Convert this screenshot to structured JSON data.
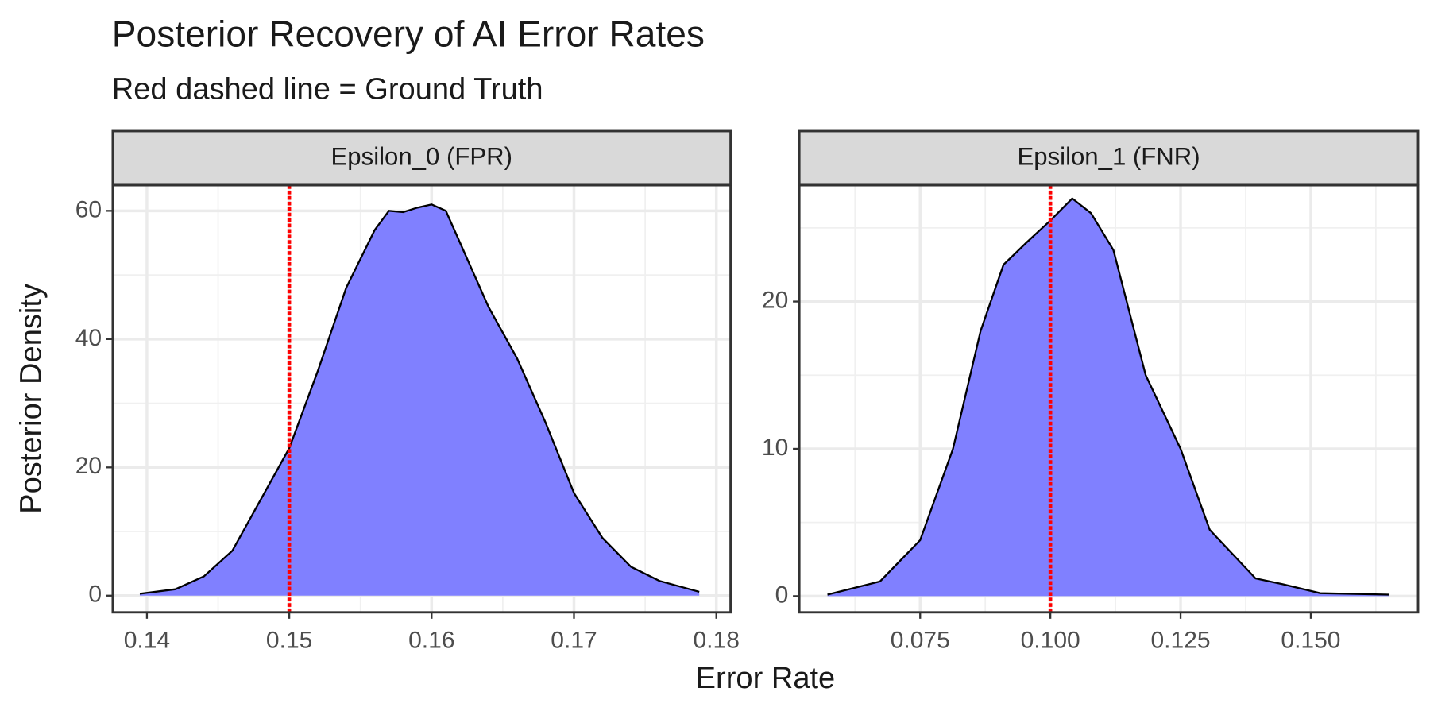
{
  "chart_data": {
    "type": "facet",
    "title": "Posterior Recovery of AI Error Rates",
    "subtitle": "Red dashed line = Ground Truth",
    "xlabel": "Error Rate",
    "ylabel": "Posterior Density",
    "facets": [
      {
        "type": "area",
        "title": "Epsilon_0 (FPR)",
        "color": "#8080ff",
        "x": [
          0.1395,
          0.142,
          0.144,
          0.146,
          0.148,
          0.15,
          0.152,
          0.154,
          0.156,
          0.157,
          0.158,
          0.159,
          0.16,
          0.161,
          0.162,
          0.164,
          0.166,
          0.168,
          0.17,
          0.172,
          0.174,
          0.176,
          0.1788
        ],
        "values": [
          0.3,
          1,
          3,
          7,
          15,
          23,
          35,
          48,
          57,
          60,
          59.8,
          60.5,
          61,
          60,
          55,
          45,
          37,
          27,
          16,
          9,
          4.5,
          2.3,
          0.6
        ],
        "xlim": [
          0.1376,
          0.181
        ],
        "ylim": [
          -2.6,
          64
        ],
        "xticks": [
          0.14,
          0.15,
          0.16,
          0.17,
          0.18
        ],
        "xminor": [
          0.145,
          0.155,
          0.165,
          0.175
        ],
        "yticks": [
          0,
          20,
          40,
          60
        ],
        "yminor": [
          10,
          30,
          50
        ],
        "reference_line": {
          "value": 0.15,
          "color": "#ff0000"
        }
      },
      {
        "type": "area",
        "title": "Epsilon_1 (FNR)",
        "color": "#8080ff",
        "x": [
          0.0572,
          0.0673,
          0.075,
          0.0813,
          0.0866,
          0.091,
          0.0954,
          0.1,
          0.1042,
          0.1078,
          0.1121,
          0.1183,
          0.125,
          0.1306,
          0.1394,
          0.1447,
          0.1518,
          0.165
        ],
        "values": [
          0.1,
          1,
          3.8,
          10,
          18,
          22.5,
          24,
          25.5,
          27,
          26,
          23.5,
          15,
          10,
          4.5,
          1.2,
          0.8,
          0.2,
          0.1
        ],
        "xlim": [
          0.0518,
          0.1706
        ],
        "ylim": [
          -1.1,
          27.9
        ],
        "xticks": [
          0.075,
          {
            "value": 0.1,
            "label": "0.100"
          },
          0.125,
          {
            "value": 0.15,
            "label": "0.150"
          }
        ],
        "xminor": [
          0.0625,
          0.0875,
          0.1125,
          0.1375,
          0.1625
        ],
        "yticks": [
          0,
          10,
          20
        ],
        "yminor": [
          5,
          15,
          25
        ],
        "reference_line": {
          "value": 0.1,
          "color": "#ff0000"
        }
      }
    ]
  }
}
